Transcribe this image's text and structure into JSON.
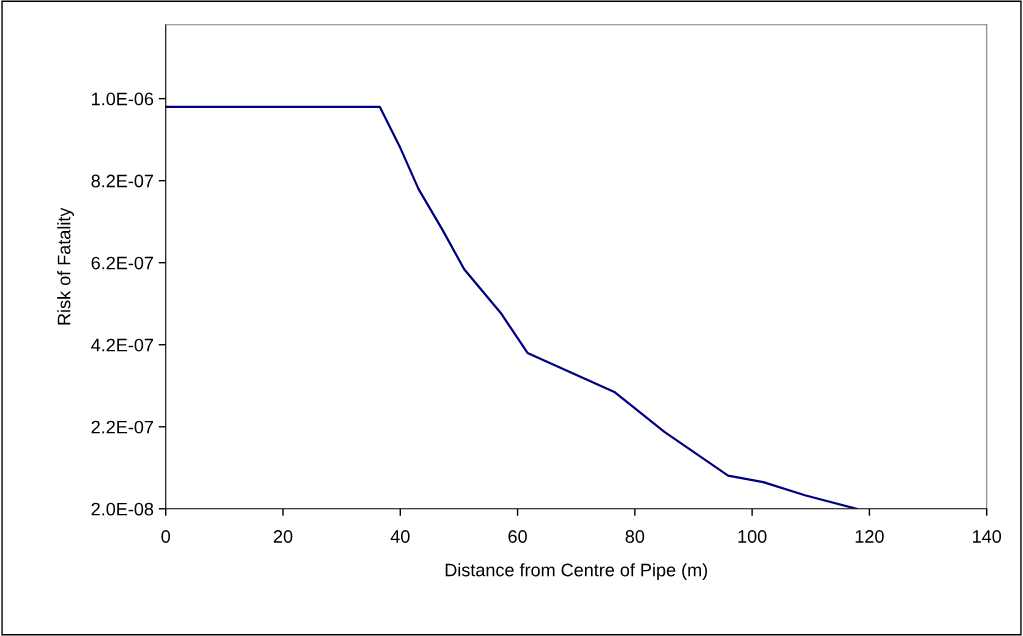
{
  "chart_data": {
    "type": "line",
    "xlabel": "Distance from Centre of Pipe (m)",
    "ylabel": "Risk of Fatality",
    "x": [
      0,
      36.5,
      40,
      43.1,
      47.2,
      50.9,
      57.1,
      61.7,
      76.5,
      85.1,
      95.9,
      101.9,
      109,
      117.8
    ],
    "series": [
      {
        "color": "#000080",
        "values": [
          1e-06,
          1e-06,
          9e-07,
          8e-07,
          7e-07,
          6.04e-07,
          4.98e-07,
          4e-07,
          3.05e-07,
          2.07e-07,
          1.01e-07,
          8.5e-08,
          5.3e-08,
          2e-08
        ]
      }
    ],
    "xlim": [
      0,
      140
    ],
    "xticks": [
      0,
      20,
      40,
      60,
      80,
      100,
      120,
      140
    ],
    "ylim": [
      2e-08,
      1.2e-06
    ],
    "yticks": [
      {
        "value": 2e-08,
        "label": "2.0E-08"
      },
      {
        "value": 2.2e-07,
        "label": "2.2E-07"
      },
      {
        "value": 4.2e-07,
        "label": "4.2E-07"
      },
      {
        "value": 6.2e-07,
        "label": "6.2E-07"
      },
      {
        "value": 8.2e-07,
        "label": "8.2E-07"
      },
      {
        "value": 1.02e-06,
        "label": "1.0E-06"
      }
    ],
    "grid": false,
    "marker": "none",
    "line_style": "solid"
  }
}
